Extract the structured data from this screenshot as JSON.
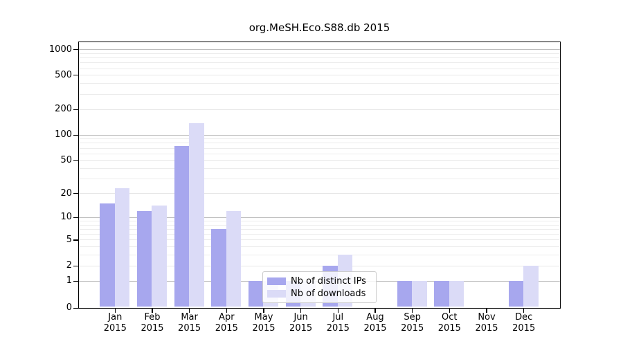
{
  "title": "org.MeSH.Eco.S88.db 2015",
  "chart_data": {
    "type": "bar",
    "title": "org.MeSH.Eco.S88.db 2015",
    "categories": [
      "Jan 2015",
      "Feb 2015",
      "Mar 2015",
      "Apr 2015",
      "May 2015",
      "Jun 2015",
      "Jul 2015",
      "Aug 2015",
      "Sep 2015",
      "Oct 2015",
      "Nov 2015",
      "Dec 2015"
    ],
    "series": [
      {
        "name": "Nb of distinct IPs",
        "color": "#a7a7ee",
        "values": [
          15,
          12,
          74,
          7,
          1,
          1,
          2,
          0,
          1,
          1,
          0,
          1
        ]
      },
      {
        "name": "Nb of downloads",
        "color": "#dbdbf7",
        "values": [
          23,
          14,
          136,
          12,
          1,
          1,
          3,
          0,
          1,
          1,
          0,
          2
        ]
      }
    ],
    "yscale": "log1p",
    "y_ticks": [
      0,
      1,
      2,
      5,
      10,
      20,
      50,
      100,
      200,
      500,
      1000
    ],
    "ylim": [
      0,
      1280
    ],
    "grid": true,
    "legend_position": "lower-center",
    "xlabel": "",
    "ylabel": ""
  },
  "colors": {
    "bar_dark": "#a7a7ee",
    "bar_light": "#dbdbf7",
    "grid_major": "#bdbdbd",
    "grid_minor": "#ececec",
    "axis": "#000000"
  }
}
